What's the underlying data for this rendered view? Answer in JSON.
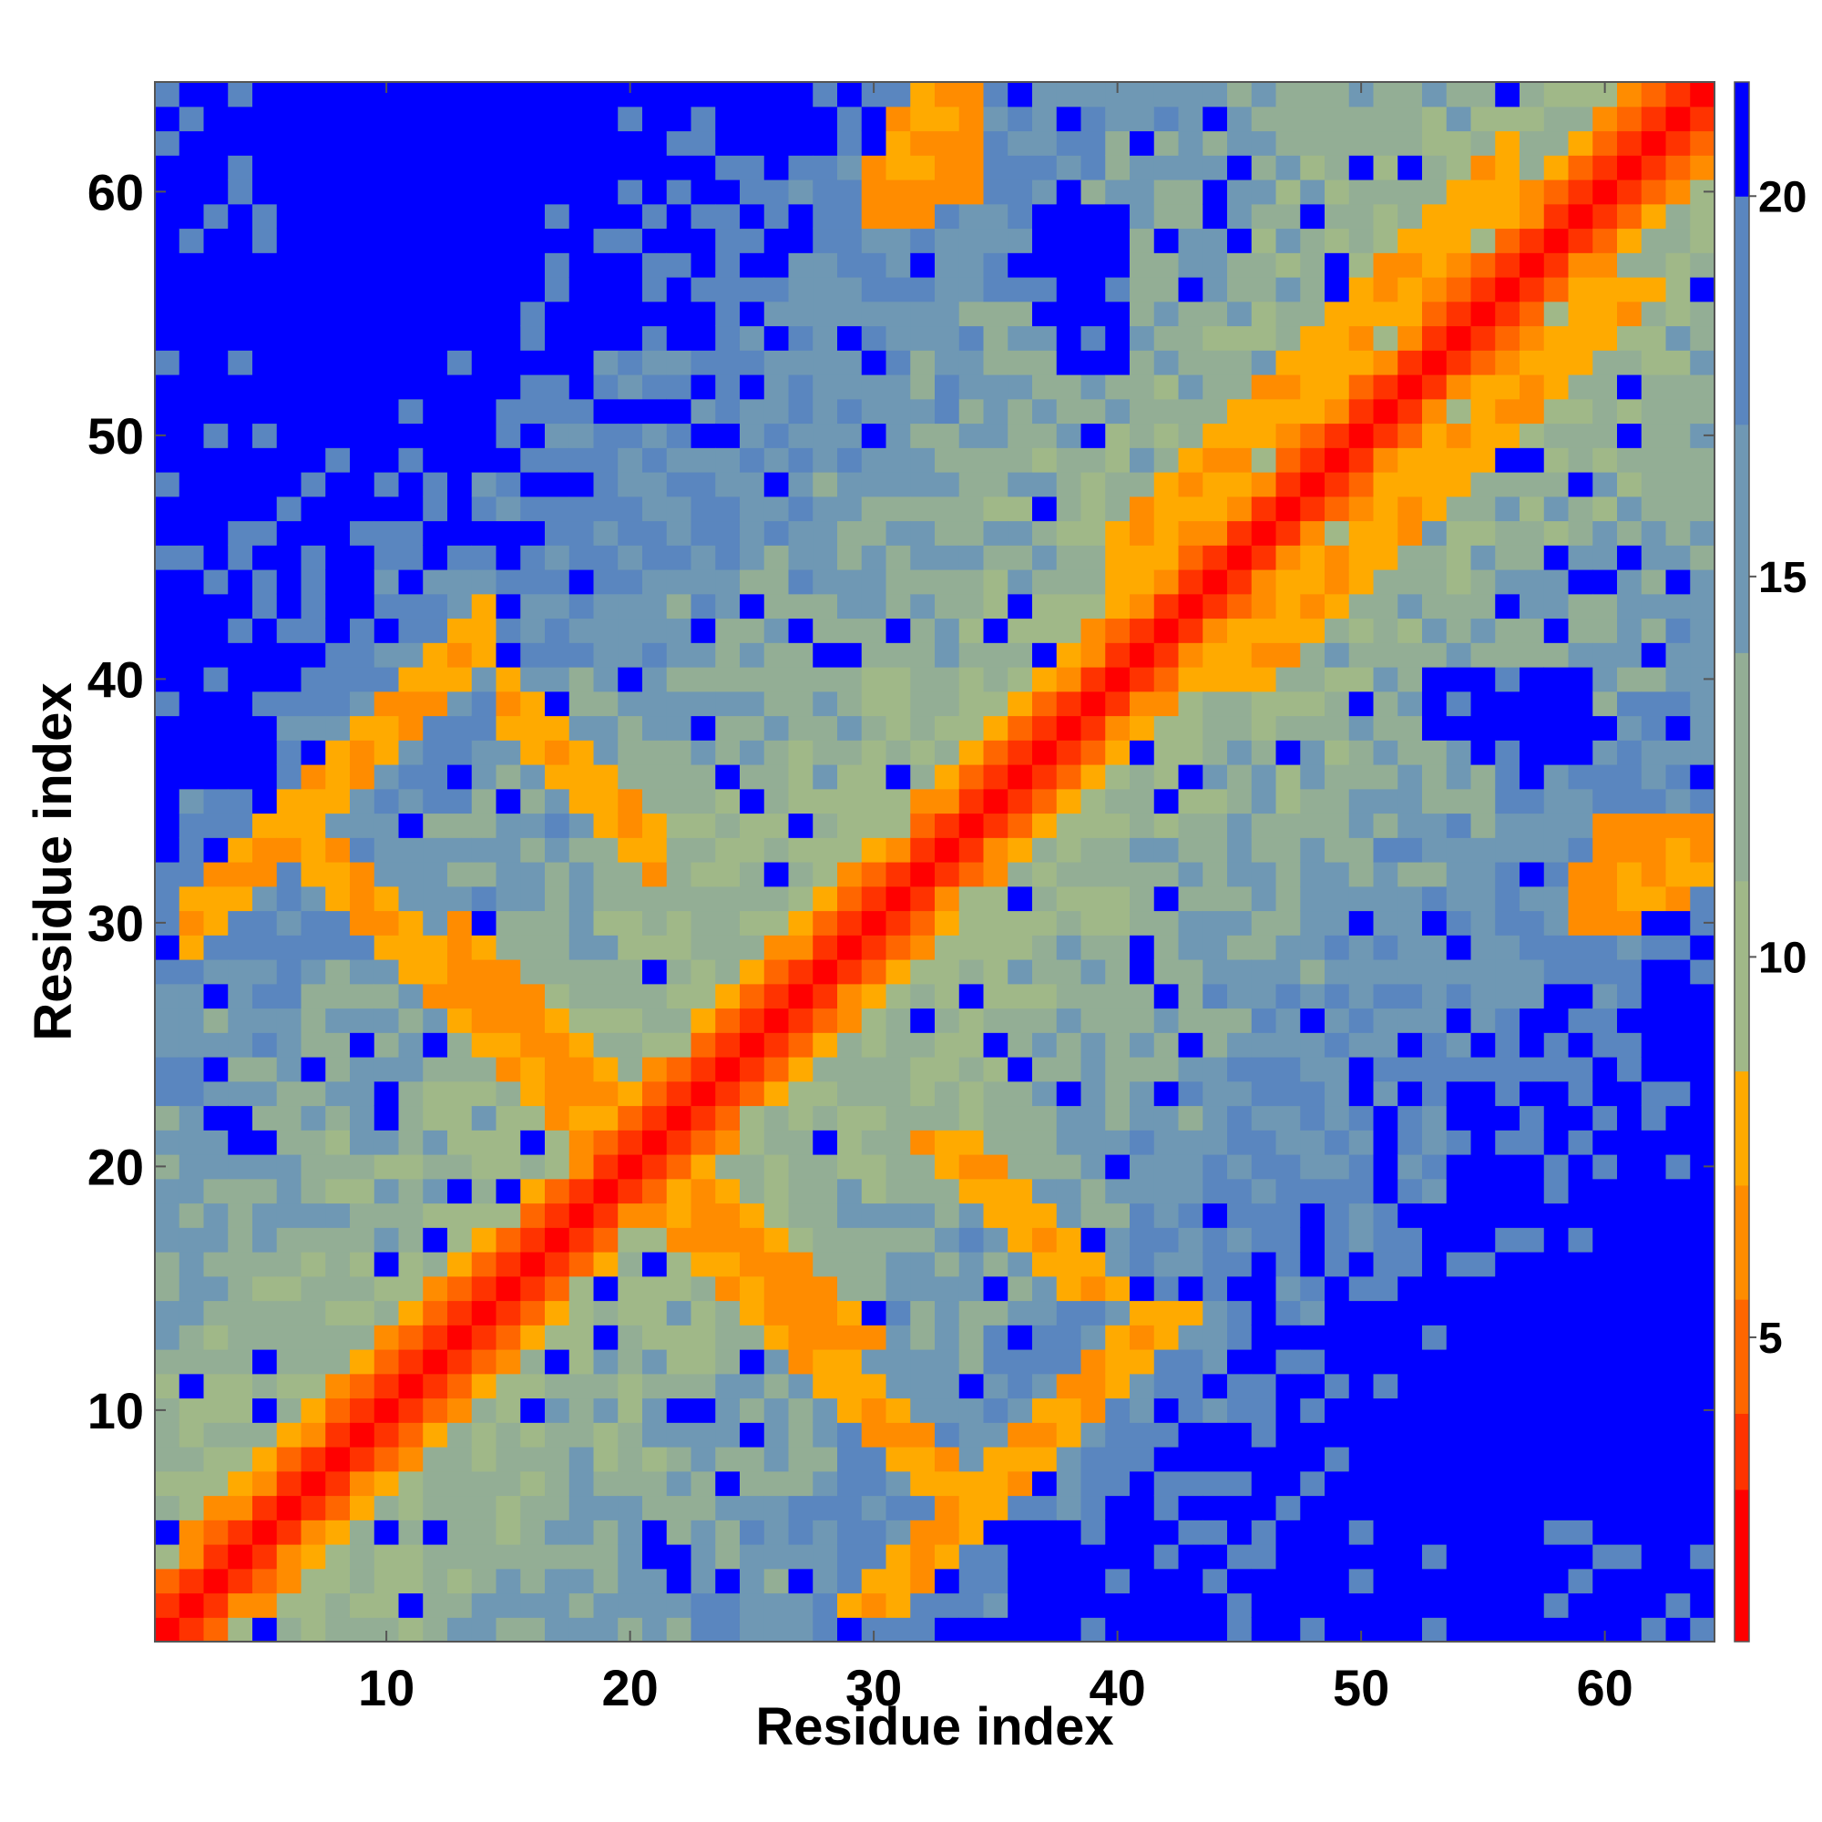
{
  "chart_data": {
    "type": "heatmap",
    "title": "",
    "xlabel": "Residue index",
    "ylabel": "Residue index",
    "n_residues": 64,
    "xlim": [
      1,
      64
    ],
    "ylim": [
      1,
      64
    ],
    "x_ticks": [
      10,
      20,
      30,
      40,
      50,
      60
    ],
    "y_ticks": [
      10,
      20,
      30,
      40,
      50,
      60
    ],
    "colorbar": {
      "ticks": [
        5,
        10,
        15,
        20
      ],
      "range": [
        1,
        21.5
      ],
      "bands": [
        {
          "from": 1.0,
          "to": 3.0,
          "color": "#ff0000"
        },
        {
          "from": 3.0,
          "to": 4.0,
          "color": "#ff3300"
        },
        {
          "from": 4.0,
          "to": 5.5,
          "color": "#ff6600"
        },
        {
          "from": 5.5,
          "to": 7.0,
          "color": "#ff8c00"
        },
        {
          "from": 7.0,
          "to": 8.5,
          "color": "#ffaa00"
        },
        {
          "from": 8.5,
          "to": 11.0,
          "color": "#a0b888"
        },
        {
          "from": 11.0,
          "to": 14.0,
          "color": "#93ae95"
        },
        {
          "from": 14.0,
          "to": 17.0,
          "color": "#6f98b4"
        },
        {
          "from": 17.0,
          "to": 20.0,
          "color": "#5a86bf"
        },
        {
          "from": 20.0,
          "to": 21.5,
          "color": "#0000ff"
        }
      ]
    },
    "matrix_semantics": "symmetric pairwise residue distance map; values in colorbar units",
    "contact_features": [
      {
        "kind": "diagonal",
        "offset_0": 1.5,
        "offset_1": 3.5,
        "offset_2": 6.0
      },
      {
        "kind": "antiparallel_band",
        "sum": 42,
        "i_range": [
          13,
          29
        ],
        "value": 5.5
      },
      {
        "kind": "antiparallel_band",
        "sum": 40,
        "i_range": [
          6,
          18
        ],
        "value": 6.0
      },
      {
        "kind": "antiparallel_band",
        "sum": 54,
        "i_range": [
          15,
          21
        ],
        "value": 6.5
      },
      {
        "kind": "parallel_band",
        "offset": 28,
        "i_range": [
          2,
          14
        ],
        "value": 6.0
      },
      {
        "kind": "parallel_band",
        "offset": 5,
        "i_range": [
          40,
          56
        ],
        "value": 6.5
      },
      {
        "kind": "hotspot",
        "i": 32,
        "j": 62,
        "value": 6.0
      },
      {
        "kind": "hotspot",
        "i": 33,
        "j": 64,
        "value": 6.0
      },
      {
        "kind": "hotspot",
        "i": 60,
        "j": 31,
        "value": 5.5
      },
      {
        "kind": "hotspot",
        "i": 61,
        "j": 33,
        "value": 5.5
      }
    ],
    "far_blocks": [
      {
        "i_range": [
          1,
          5
        ],
        "j_range": [
          36,
          64
        ],
        "value": 21
      },
      {
        "i_range": [
          36,
          64
        ],
        "j_range": [
          1,
          5
        ],
        "value": 21
      },
      {
        "i_range": [
          38,
          40
        ],
        "j_range": [
          53,
          58
        ],
        "value": 21
      },
      {
        "i_range": [
          53,
          58
        ],
        "j_range": [
          38,
          40
        ],
        "value": 21
      },
      {
        "i_range": [
          55,
          59
        ],
        "j_range": [
          37,
          40
        ],
        "value": 21
      },
      {
        "i_range": [
          37,
          40
        ],
        "j_range": [
          55,
          59
        ],
        "value": 21
      },
      {
        "i_range": [
          40,
          64
        ],
        "j_range": [
          1,
          4
        ],
        "value": 21
      },
      {
        "i_range": [
          1,
          4
        ],
        "j_range": [
          40,
          64
        ],
        "value": 21
      }
    ]
  }
}
